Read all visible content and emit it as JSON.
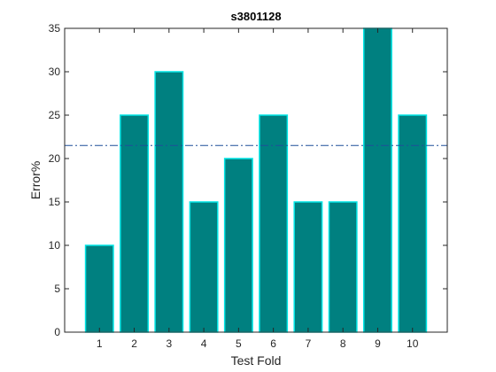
{
  "chart_data": {
    "type": "bar",
    "title": "s3801128",
    "xlabel": "Test Fold",
    "ylabel": "Error%",
    "categories": [
      "1",
      "2",
      "3",
      "4",
      "5",
      "6",
      "7",
      "8",
      "9",
      "10"
    ],
    "values": [
      10,
      25,
      30,
      15,
      20,
      25,
      15,
      15,
      35,
      25
    ],
    "ylim": [
      0,
      35
    ],
    "yticks": [
      0,
      5,
      10,
      15,
      20,
      25,
      30,
      35
    ],
    "reference_line": {
      "y": 21.5,
      "style": "dash-dot",
      "color": "#1f4e99"
    },
    "bar_fill": "#008080",
    "bar_edge": "#00e5e5",
    "grid": false
  }
}
